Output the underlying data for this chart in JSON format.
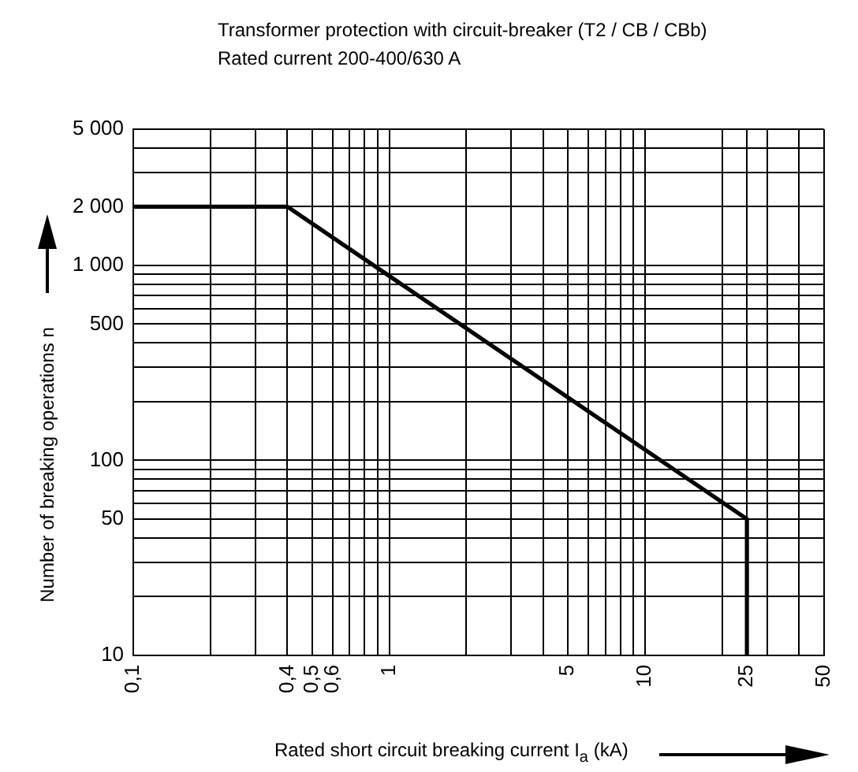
{
  "chart_data": {
    "type": "line",
    "title": "Transformer protection with circuit-breaker (T2 / CB / CBb)",
    "subtitle": "Rated current 200-400/630 A",
    "xlabel": "Rated short circuit breaking current I$_{a}$ (kA)",
    "ylabel": "Number of breaking operations n",
    "x": [
      0.1,
      0.4,
      25,
      25
    ],
    "series": [
      {
        "color": "#000000",
        "values": [
          2000,
          2000,
          50,
          10
        ]
      }
    ],
    "log": "xy",
    "grid": true,
    "legend": false,
    "marker": "none",
    "line_style": "solid",
    "xlim": [
      0.1,
      50
    ],
    "ylim": [
      10,
      5000
    ],
    "xticks": [
      {
        "value": 0.1,
        "label": "0,1"
      },
      {
        "value": 0.2,
        "label": null
      },
      {
        "value": 0.3,
        "label": null
      },
      {
        "value": 0.4,
        "label": "0,4"
      },
      {
        "value": 0.5,
        "label": "0,5"
      },
      {
        "value": 0.6,
        "label": "0,6"
      },
      {
        "value": 0.7,
        "label": null
      },
      {
        "value": 0.8,
        "label": null
      },
      {
        "value": 0.9,
        "label": null
      },
      1,
      {
        "value": 2,
        "label": null
      },
      {
        "value": 3,
        "label": null
      },
      {
        "value": 4,
        "label": null
      },
      5,
      {
        "value": 6,
        "label": null
      },
      {
        "value": 7,
        "label": null
      },
      {
        "value": 8,
        "label": null
      },
      {
        "value": 9,
        "label": null
      },
      10,
      {
        "value": 20,
        "label": null
      },
      25,
      {
        "value": 30,
        "label": null
      },
      {
        "value": 40,
        "label": null
      },
      50
    ],
    "yticks": [
      10,
      {
        "value": 20,
        "label": null
      },
      {
        "value": 30,
        "label": null
      },
      {
        "value": 40,
        "label": null
      },
      50,
      {
        "value": 60,
        "label": null
      },
      {
        "value": 70,
        "label": null
      },
      {
        "value": 80,
        "label": null
      },
      {
        "value": 90,
        "label": null
      },
      100,
      {
        "value": 200,
        "label": null
      },
      {
        "value": 300,
        "label": null
      },
      {
        "value": 400,
        "label": null
      },
      500,
      {
        "value": 600,
        "label": null
      },
      {
        "value": 700,
        "label": null
      },
      {
        "value": 800,
        "label": null
      },
      {
        "value": 900,
        "label": null
      },
      {
        "value": 1000,
        "label": "1 000"
      },
      {
        "value": 2000,
        "label": "2 000"
      },
      {
        "value": 3000,
        "label": null
      },
      {
        "value": 4000,
        "label": null
      },
      {
        "value": 5000,
        "label": "5 000"
      }
    ]
  }
}
